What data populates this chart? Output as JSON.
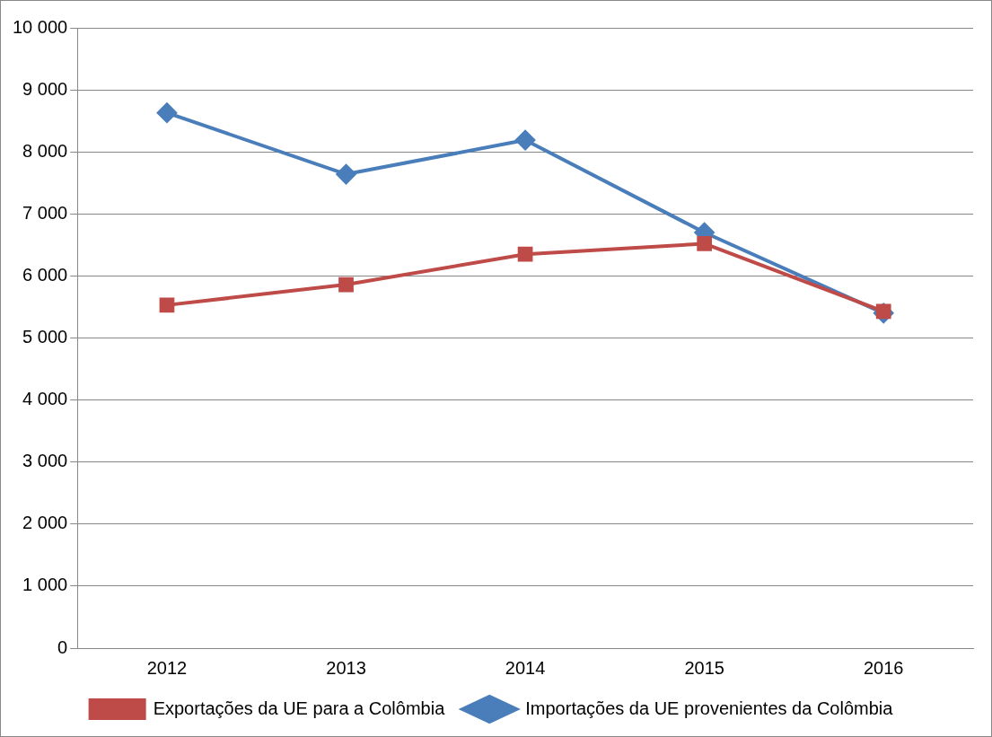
{
  "chart_data": {
    "type": "line",
    "categories": [
      "2012",
      "2013",
      "2014",
      "2015",
      "2016"
    ],
    "series": [
      {
        "name": "Importações da UE provenientes da Colômbia",
        "color": "#4a7ebb",
        "values": [
          8630,
          7640,
          8190,
          6700,
          5400
        ],
        "marker": "diamond"
      },
      {
        "name": "Exportações da UE para a Colômbia",
        "color": "#be4b48",
        "values": [
          5530,
          5860,
          6350,
          6520,
          5430
        ],
        "marker": "square"
      }
    ],
    "ylim": [
      0,
      10000
    ],
    "yticks": [
      {
        "value": 0,
        "label": "0"
      },
      {
        "value": 1000,
        "label": "1 000"
      },
      {
        "value": 2000,
        "label": "2 000"
      },
      {
        "value": 3000,
        "label": "3 000"
      },
      {
        "value": 4000,
        "label": "4 000"
      },
      {
        "value": 5000,
        "label": "5 000"
      },
      {
        "value": 6000,
        "label": "6 000"
      },
      {
        "value": 7000,
        "label": "7 000"
      },
      {
        "value": 8000,
        "label": "8 000"
      },
      {
        "value": 9000,
        "label": "9 000"
      },
      {
        "value": 10000,
        "label": "10 000"
      }
    ],
    "grid": "y",
    "legend": "bottom",
    "line_style": "solid"
  }
}
